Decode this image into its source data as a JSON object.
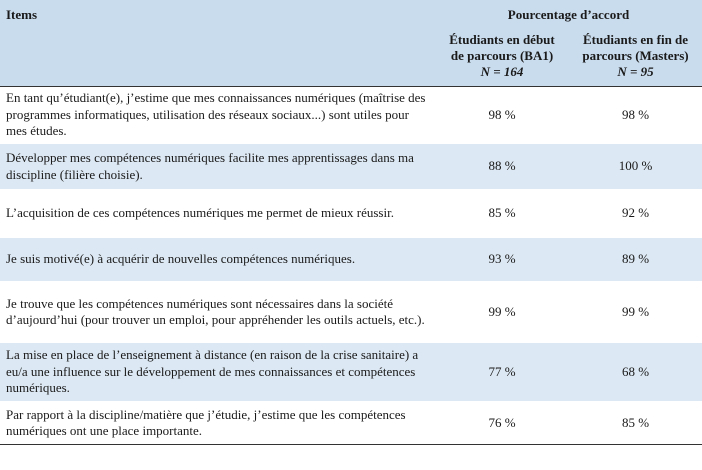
{
  "header": {
    "items": "Items",
    "group": "Pourcentage d’accord",
    "col1_line1": "Étudiants en début",
    "col1_line2": "de parcours (BA1)",
    "col1_n": "N = 164",
    "col2_line1": "Étudiants en fin de",
    "col2_line2": "parcours (Masters)",
    "col2_n": "N = 95"
  },
  "rows": [
    {
      "item": "En tant qu’étudiant(e), j’estime que mes connaissances numériques (maîtrise des programmes informatiques, utilisation des réseaux sociaux...) sont utiles pour mes études.",
      "ba1": "98 %",
      "masters": "98 %"
    },
    {
      "item": "Développer mes compétences numériques facilite mes apprentissages dans ma discipline (filière choisie).",
      "ba1": "88 %",
      "masters": "100 %"
    },
    {
      "item": "L’acquisition de ces compétences numériques me permet de mieux réussir.",
      "ba1": "85 %",
      "masters": "92 %"
    },
    {
      "item": "Je suis motivé(e) à acquérir de nouvelles compétences numériques.",
      "ba1": "93 %",
      "masters": "89 %"
    },
    {
      "item": "Je trouve que les compétences numériques sont nécessaires dans la société d’aujourd’hui (pour trouver un emploi, pour appréhender les outils actuels, etc.).",
      "ba1": "99 %",
      "masters": "99 %"
    },
    {
      "item": "La mise en place de l’enseignement à distance (en raison de la crise sanitaire) a eu/a une influence sur le développement de mes connaissances et compétences numériques.",
      "ba1": "77 %",
      "masters": "68 %"
    },
    {
      "item": "Par rapport à la discipline/matière que j’étudie, j’estime que les compétences numériques ont une place importante.",
      "ba1": "76 %",
      "masters": "85 %"
    }
  ]
}
